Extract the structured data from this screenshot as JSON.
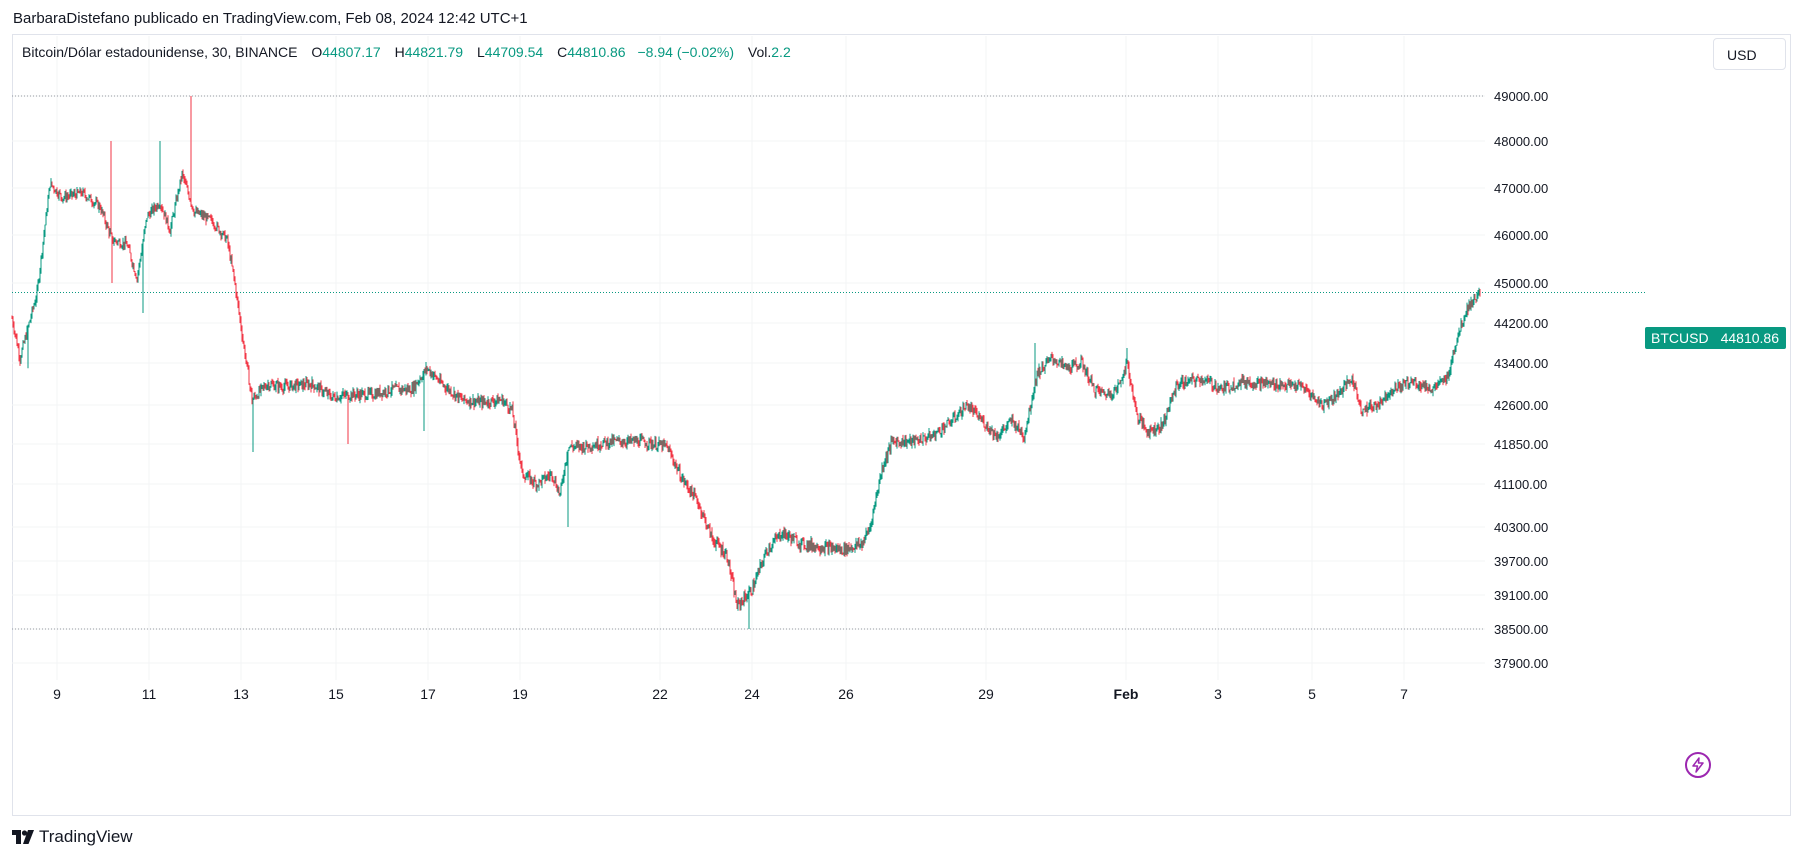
{
  "attribution": "BarbaraDistefano publicado en TradingView.com, Feb 08, 2024 12:42 UTC+1",
  "legend": {
    "title": "Bitcoin/Dólar estadounidense, 30, BINANCE",
    "o_label": "O",
    "o_value": "44807.17",
    "h_label": "H",
    "h_value": "44821.79",
    "l_label": "L",
    "l_value": "44709.54",
    "c_label": "C",
    "c_value": "44810.86",
    "change": "−8.94 (−0.02%)",
    "vol_label": "Vol.",
    "vol_value": "2.2"
  },
  "currency_button": "USD",
  "last_price_badge": {
    "symbol": "BTCUSD",
    "price": "44810.86"
  },
  "footer_brand": "TradingView",
  "icons": {
    "brand": "tradingview-logo-icon",
    "alert": "lightning-icon"
  },
  "colors": {
    "up": "#089981",
    "down": "#f23645",
    "badge": "#089981",
    "grid": "#f3f4f6",
    "accent": "#9c27b0"
  },
  "chart_data": {
    "type": "candlestick",
    "symbol": "BTCUSD",
    "interval": "30",
    "exchange": "BINANCE",
    "x_tick_labels": [
      "9",
      "11",
      "13",
      "15",
      "17",
      "19",
      "22",
      "24",
      "26",
      "29",
      "Feb",
      "3",
      "5",
      "7"
    ],
    "y_tick_labels": [
      "49000.00",
      "48000.00",
      "47000.00",
      "46000.00",
      "45000.00",
      "44200.00",
      "43400.00",
      "42600.00",
      "41850.00",
      "41100.00",
      "40300.00",
      "39700.00",
      "39100.00",
      "38500.00",
      "37900.00"
    ],
    "horizontal_lines": [
      49000,
      38500
    ],
    "last_price": 44810.86,
    "close_path": [
      {
        "x": 0,
        "close": 44300
      },
      {
        "x": 8,
        "close": 43500
      },
      {
        "x": 25,
        "close": 44800
      },
      {
        "x": 38,
        "close": 47100
      },
      {
        "x": 50,
        "close": 46800
      },
      {
        "x": 70,
        "close": 46900
      },
      {
        "x": 88,
        "close": 46600
      },
      {
        "x": 100,
        "close": 45900
      },
      {
        "x": 115,
        "close": 45800
      },
      {
        "x": 125,
        "close": 45100
      },
      {
        "x": 135,
        "close": 46400
      },
      {
        "x": 148,
        "close": 46700
      },
      {
        "x": 158,
        "close": 46100
      },
      {
        "x": 170,
        "close": 47300
      },
      {
        "x": 182,
        "close": 46500
      },
      {
        "x": 200,
        "close": 46300
      },
      {
        "x": 215,
        "close": 45900
      },
      {
        "x": 222,
        "close": 45100
      },
      {
        "x": 232,
        "close": 43700
      },
      {
        "x": 240,
        "close": 42700
      },
      {
        "x": 255,
        "close": 43000
      },
      {
        "x": 270,
        "close": 42950
      },
      {
        "x": 300,
        "close": 43000
      },
      {
        "x": 320,
        "close": 42750
      },
      {
        "x": 340,
        "close": 42800
      },
      {
        "x": 360,
        "close": 42800
      },
      {
        "x": 380,
        "close": 42900
      },
      {
        "x": 400,
        "close": 42900
      },
      {
        "x": 415,
        "close": 43300
      },
      {
        "x": 430,
        "close": 43000
      },
      {
        "x": 450,
        "close": 42700
      },
      {
        "x": 470,
        "close": 42650
      },
      {
        "x": 490,
        "close": 42700
      },
      {
        "x": 500,
        "close": 42500
      },
      {
        "x": 510,
        "close": 41300
      },
      {
        "x": 525,
        "close": 41100
      },
      {
        "x": 540,
        "close": 41300
      },
      {
        "x": 548,
        "close": 40900
      },
      {
        "x": 556,
        "close": 41800
      },
      {
        "x": 570,
        "close": 41800
      },
      {
        "x": 600,
        "close": 41900
      },
      {
        "x": 630,
        "close": 41900
      },
      {
        "x": 655,
        "close": 41800
      },
      {
        "x": 670,
        "close": 41200
      },
      {
        "x": 685,
        "close": 40800
      },
      {
        "x": 700,
        "close": 40100
      },
      {
        "x": 715,
        "close": 39800
      },
      {
        "x": 725,
        "close": 38900
      },
      {
        "x": 740,
        "close": 39200
      },
      {
        "x": 755,
        "close": 39900
      },
      {
        "x": 770,
        "close": 40200
      },
      {
        "x": 790,
        "close": 40000
      },
      {
        "x": 810,
        "close": 39950
      },
      {
        "x": 830,
        "close": 39900
      },
      {
        "x": 850,
        "close": 40000
      },
      {
        "x": 858,
        "close": 40300
      },
      {
        "x": 870,
        "close": 41400
      },
      {
        "x": 880,
        "close": 41900
      },
      {
        "x": 900,
        "close": 41900
      },
      {
        "x": 920,
        "close": 42000
      },
      {
        "x": 940,
        "close": 42300
      },
      {
        "x": 955,
        "close": 42600
      },
      {
        "x": 970,
        "close": 42300
      },
      {
        "x": 985,
        "close": 42000
      },
      {
        "x": 1000,
        "close": 42300
      },
      {
        "x": 1012,
        "close": 42000
      },
      {
        "x": 1025,
        "close": 43200
      },
      {
        "x": 1040,
        "close": 43500
      },
      {
        "x": 1055,
        "close": 43300
      },
      {
        "x": 1070,
        "close": 43400
      },
      {
        "x": 1082,
        "close": 42900
      },
      {
        "x": 1095,
        "close": 42800
      },
      {
        "x": 1105,
        "close": 42900
      },
      {
        "x": 1115,
        "close": 43400
      },
      {
        "x": 1125,
        "close": 42400
      },
      {
        "x": 1135,
        "close": 42100
      },
      {
        "x": 1150,
        "close": 42200
      },
      {
        "x": 1165,
        "close": 43000
      },
      {
        "x": 1190,
        "close": 43100
      },
      {
        "x": 1210,
        "close": 42900
      },
      {
        "x": 1230,
        "close": 43050
      },
      {
        "x": 1260,
        "close": 43000
      },
      {
        "x": 1290,
        "close": 42950
      },
      {
        "x": 1310,
        "close": 42600
      },
      {
        "x": 1325,
        "close": 42800
      },
      {
        "x": 1340,
        "close": 43100
      },
      {
        "x": 1350,
        "close": 42500
      },
      {
        "x": 1365,
        "close": 42600
      },
      {
        "x": 1380,
        "close": 42900
      },
      {
        "x": 1400,
        "close": 43050
      },
      {
        "x": 1420,
        "close": 42900
      },
      {
        "x": 1435,
        "close": 43100
      },
      {
        "x": 1445,
        "close": 43900
      },
      {
        "x": 1455,
        "close": 44500
      },
      {
        "x": 1468,
        "close": 44810
      }
    ],
    "spikes": [
      {
        "x": 16,
        "price": 43300
      },
      {
        "x": 99,
        "price": 48000
      },
      {
        "x": 100,
        "price": 45000
      },
      {
        "x": 131,
        "price": 44400
      },
      {
        "x": 148,
        "price": 48000
      },
      {
        "x": 179,
        "price": 49000
      },
      {
        "x": 241,
        "price": 41700
      },
      {
        "x": 336,
        "price": 41850
      },
      {
        "x": 412,
        "price": 42100
      },
      {
        "x": 556,
        "price": 40300
      },
      {
        "x": 737,
        "price": 38500
      },
      {
        "x": 1023,
        "price": 43800
      },
      {
        "x": 1115,
        "price": 43700
      }
    ]
  }
}
